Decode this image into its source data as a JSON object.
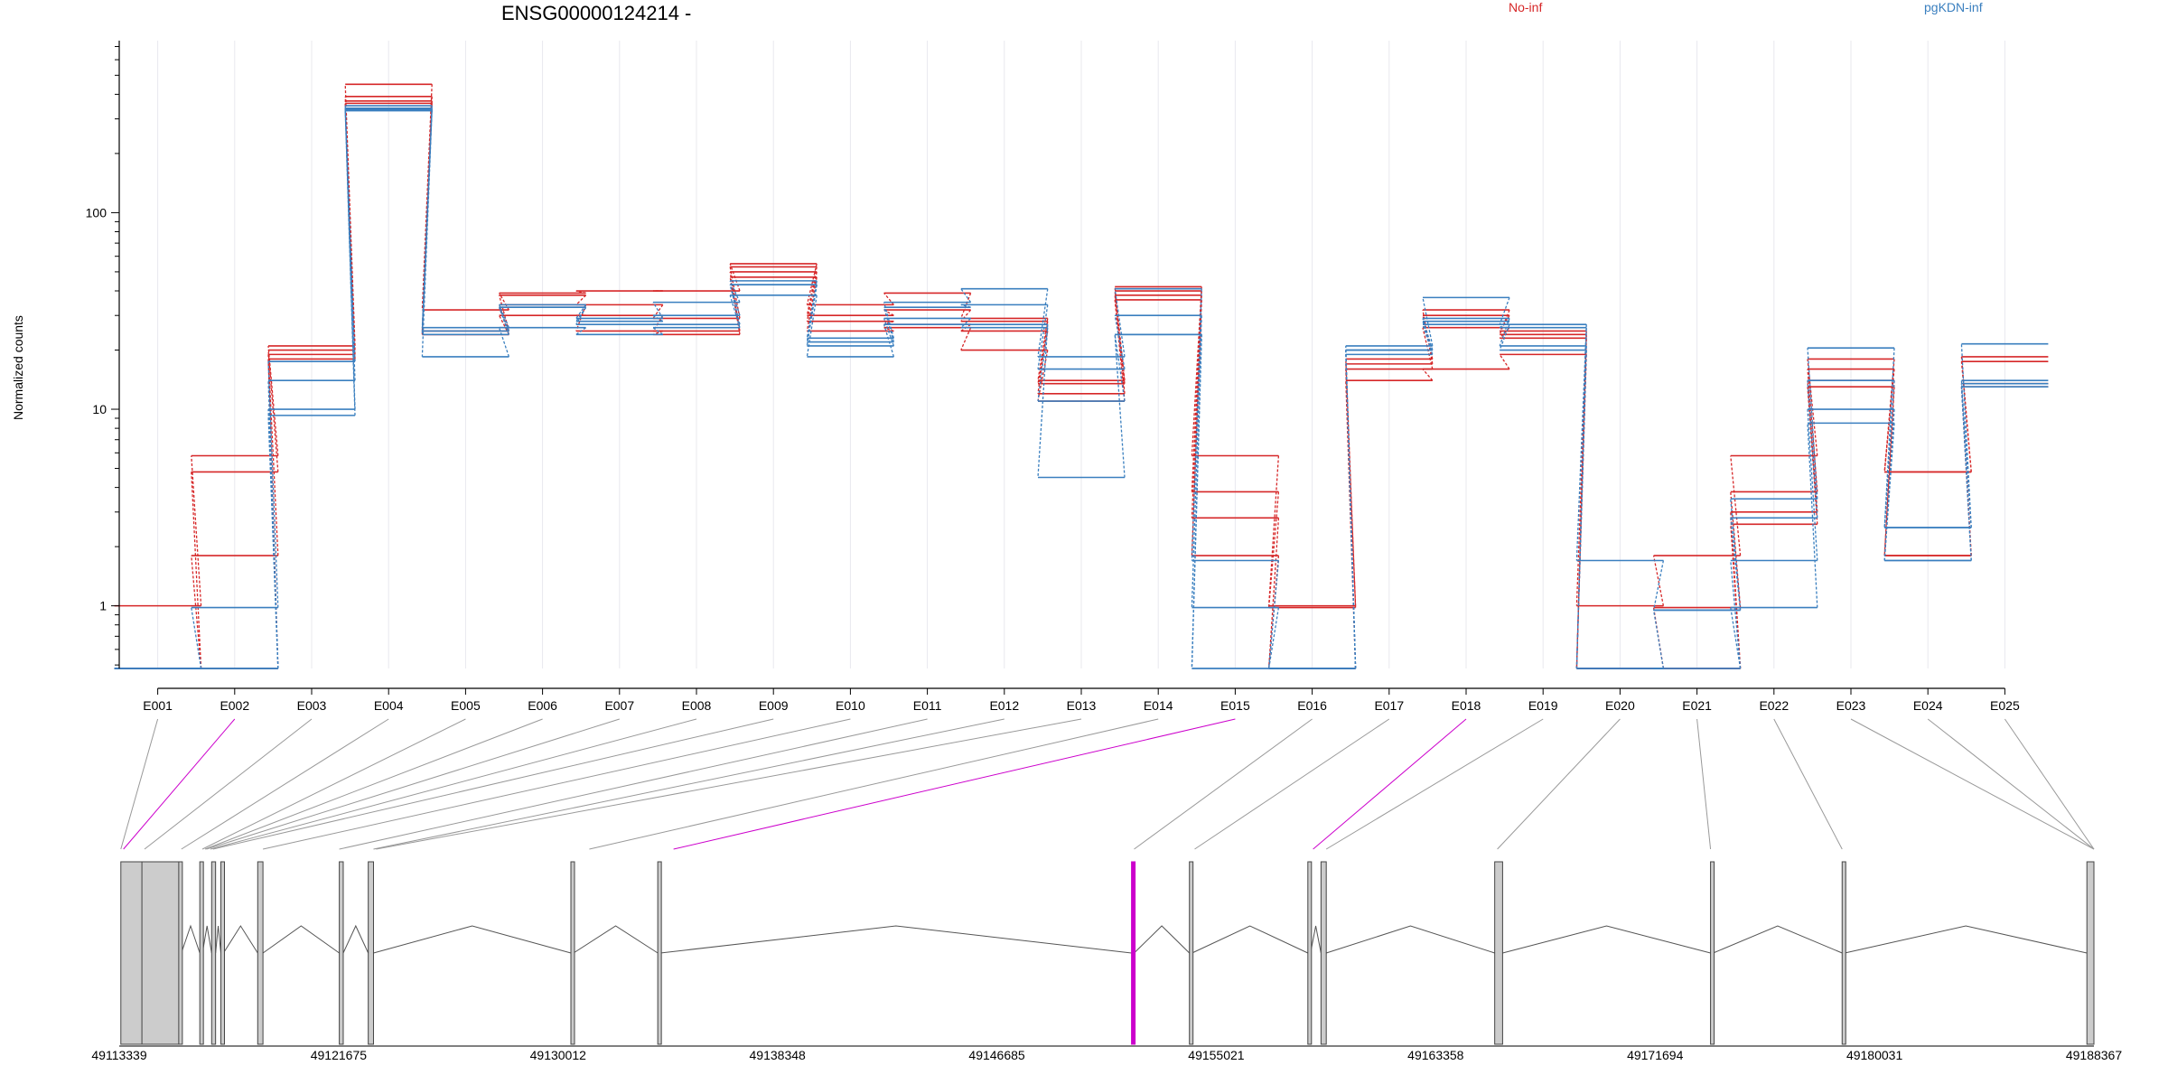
{
  "chart_data": {
    "type": "line",
    "title": "ENSG00000124214 -",
    "ylabel": "Normalized counts",
    "xlabel": "",
    "yscale": "log",
    "y_ticks": [
      1,
      10,
      100
    ],
    "y_tick_labels": [
      "1",
      "10",
      "100"
    ],
    "ylim": [
      0.48,
      750
    ],
    "grid": "vertical-only",
    "legend_placement": "top",
    "categories": [
      "E001",
      "E002",
      "E003",
      "E004",
      "E005",
      "E006",
      "E007",
      "E008",
      "E009",
      "E010",
      "E011",
      "E012",
      "E013",
      "E014",
      "E015",
      "E016",
      "E017",
      "E018",
      "E019",
      "E020",
      "E021",
      "E022",
      "E023",
      "E024",
      "E025"
    ],
    "series": [
      {
        "group": "No-inf",
        "color": "#d62728",
        "values": [
          1.0,
          5.8,
          21.0,
          450,
          32,
          39,
          40,
          40,
          55,
          34,
          39,
          29,
          14,
          42,
          5.8,
          1.0,
          16,
          26,
          23,
          1.0,
          1.8,
          5.8,
          18,
          4.8,
          18.5
        ]
      },
      {
        "group": "No-inf",
        "color": "#d62728",
        "values": [
          0.48,
          4.8,
          20.0,
          390,
          25,
          38,
          34,
          29,
          53,
          30,
          32,
          28,
          12,
          40,
          3.8,
          0.98,
          18,
          30,
          25,
          0.48,
          0.98,
          3.8,
          16,
          4.8,
          17.5
        ]
      },
      {
        "group": "No-inf",
        "color": "#d62728",
        "values": [
          0.48,
          1.8,
          19.0,
          370,
          24,
          30,
          30,
          25,
          50,
          28,
          27,
          25,
          13.5,
          38,
          2.8,
          0.48,
          17,
          32,
          24,
          0.48,
          0.48,
          3.0,
          14,
          1.8,
          13.5
        ]
      },
      {
        "group": "No-inf",
        "color": "#d62728",
        "values": [
          0.48,
          0.48,
          18.0,
          360,
          24,
          34,
          25,
          24,
          47,
          25,
          26,
          20,
          11,
          36,
          1.8,
          0.48,
          14,
          16,
          19,
          0.48,
          0.48,
          2.6,
          13,
          1.8,
          13
        ]
      },
      {
        "group": "pgKDN-inf",
        "color": "#3a7fbf",
        "values": [
          0.48,
          0.98,
          17.5,
          350,
          26,
          34,
          29,
          35,
          45,
          23,
          35,
          41,
          18.5,
          41,
          1.7,
          0.48,
          21,
          37,
          27,
          1.7,
          0.95,
          3.5,
          20.5,
          2.5,
          21.5
        ]
      },
      {
        "group": "pgKDN-inf",
        "color": "#3a7fbf",
        "values": [
          0.48,
          0.48,
          14.0,
          340,
          25,
          33,
          28,
          30,
          43,
          22,
          33,
          34,
          16,
          30,
          0.98,
          0.48,
          20,
          28,
          26,
          0.48,
          0.95,
          2.8,
          14,
          2.5,
          14
        ]
      },
      {
        "group": "pgKDN-inf",
        "color": "#3a7fbf",
        "values": [
          0.48,
          0.48,
          10.0,
          335,
          24,
          33,
          27,
          27,
          43,
          21,
          29,
          26,
          11,
          24,
          0.48,
          0.48,
          20,
          29,
          21,
          0.48,
          0.48,
          1.7,
          10,
          1.7,
          13.5
        ]
      },
      {
        "group": "pgKDN-inf",
        "color": "#3a7fbf",
        "values": [
          0.48,
          0.48,
          9.3,
          330,
          18.5,
          26,
          24,
          26,
          38,
          18.5,
          27,
          27,
          4.5,
          24,
          0.48,
          0.48,
          19,
          27,
          20,
          0.48,
          0.48,
          0.98,
          8.5,
          1.7,
          13
        ]
      }
    ],
    "legend": [
      {
        "name": "No-inf",
        "color": "#d62728"
      },
      {
        "name": "pgKDN-inf",
        "color": "#3a7fbf"
      }
    ],
    "gene_model": {
      "genomic_ticks": [
        "49113339",
        "49121675",
        "49130012",
        "49138348",
        "49146685",
        "49155021",
        "49163358",
        "49171694",
        "49180031",
        "49188367"
      ],
      "genomic_range": [
        49113339,
        49188367
      ],
      "exon_starts": [
        49113400,
        49114200,
        49115600,
        49116400,
        49116850,
        49117200,
        49118600,
        49121700,
        49122800,
        49130500,
        49133800,
        49151800,
        49154000,
        49158500,
        49159000,
        49165600,
        49173800,
        49178800,
        49188100
      ],
      "exon_ends": [
        49114900,
        49115700,
        49115700,
        49116500,
        49117000,
        49117300,
        49118800,
        49121850,
        49123000,
        49130600,
        49133900,
        49151900,
        49154100,
        49158600,
        49159200,
        49165900,
        49173900,
        49178900,
        49188367
      ],
      "exon_connection_targets": [
        49113400,
        49113500,
        49114300,
        49115700,
        49116500,
        49116600,
        49116650,
        49116800,
        49116900,
        49118800,
        49121700,
        49123000,
        49123100,
        49131200,
        49134400,
        49151900,
        49154200,
        49158700,
        49159200,
        49165700,
        49173800,
        49178800,
        49188367
      ],
      "highlight_color": "#cc00cc",
      "highlighted_exons": [
        "E002",
        "E015",
        "E018"
      ]
    }
  }
}
